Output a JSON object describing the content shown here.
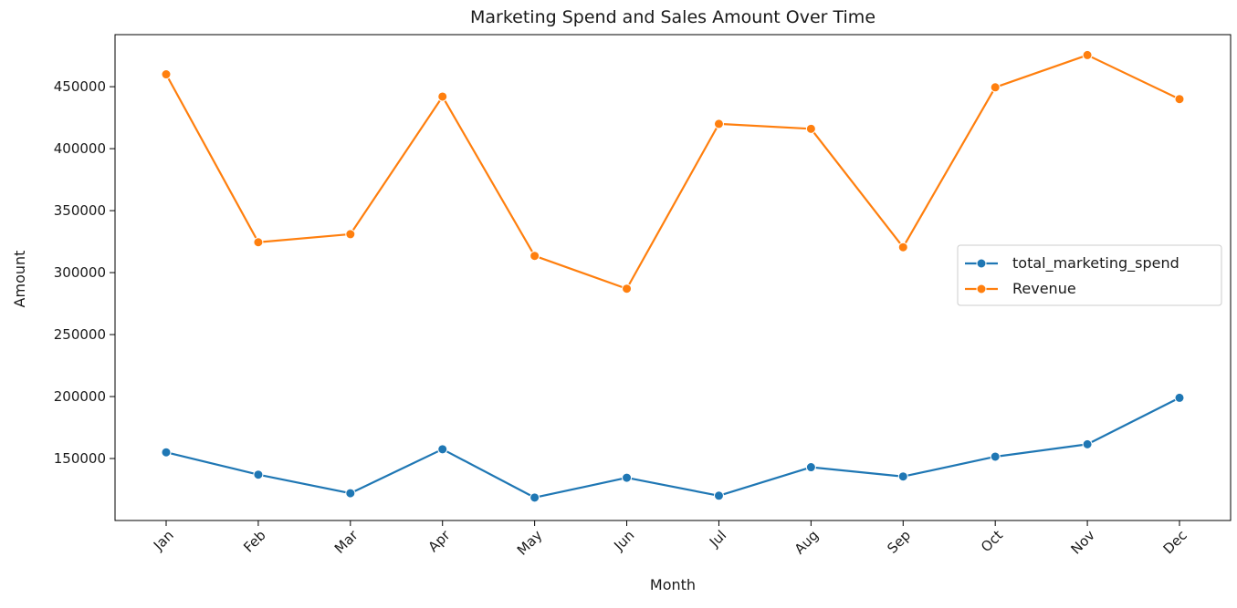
{
  "chart_data": {
    "type": "line",
    "title": "Marketing Spend and Sales Amount Over Time",
    "xlabel": "Month",
    "ylabel": "Amount",
    "categories": [
      "Jan",
      "Feb",
      "Mar",
      "Apr",
      "May",
      "Jun",
      "Jul",
      "Aug",
      "Sep",
      "Oct",
      "Nov",
      "Dec"
    ],
    "y_ticks": [
      150000,
      200000,
      250000,
      300000,
      350000,
      400000,
      450000
    ],
    "ylim": [
      100000,
      492000
    ],
    "grid": false,
    "legend_position": "center-right",
    "series": [
      {
        "name": "total_marketing_spend",
        "color": "#1f77b4",
        "marker": "circle",
        "values": [
          155000,
          137000,
          122000,
          157500,
          118500,
          134500,
          120000,
          143000,
          135500,
          151500,
          161500,
          199000
        ]
      },
      {
        "name": "Revenue",
        "color": "#ff7f0e",
        "marker": "circle",
        "values": [
          460000,
          324500,
          331000,
          442000,
          313500,
          287000,
          420000,
          416000,
          320500,
          449500,
          475500,
          440000
        ]
      }
    ]
  }
}
